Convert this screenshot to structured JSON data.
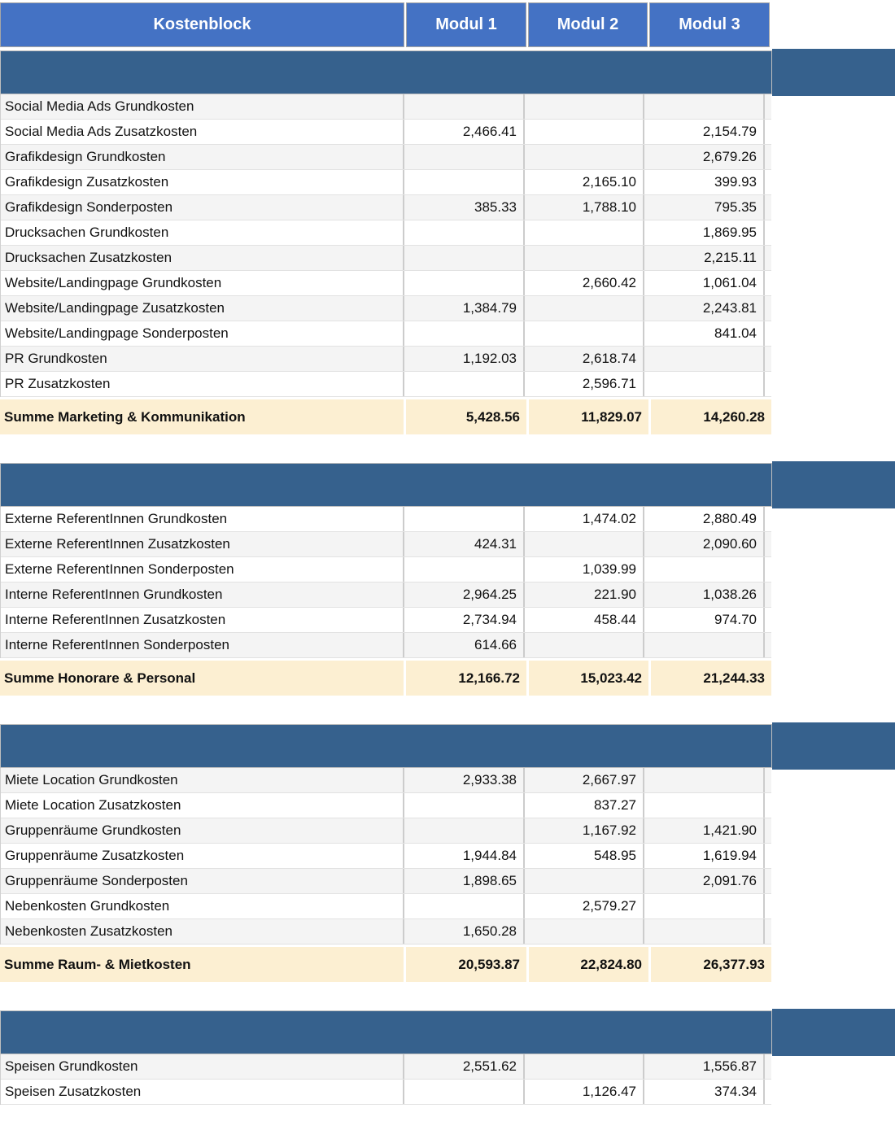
{
  "colors": {
    "header_bg": "#4472C4",
    "section_bar_bg": "#36618D",
    "summary_bg": "#FCEFD2",
    "band_bg": "#F4F4F4"
  },
  "header": {
    "columns": [
      "Kostenblock",
      "Modul 1",
      "Modul 2",
      "Modul 3"
    ]
  },
  "sections": [
    {
      "header_label": "",
      "first_row_shaded": true,
      "rows": [
        {
          "label": "Social Media Ads Grundkosten",
          "values": [
            "",
            "",
            ""
          ]
        },
        {
          "label": "Social Media Ads Zusatzkosten",
          "values": [
            "2,466.41",
            "",
            "2,154.79"
          ]
        },
        {
          "label": "Grafikdesign Grundkosten",
          "values": [
            "",
            "",
            "2,679.26"
          ]
        },
        {
          "label": "Grafikdesign Zusatzkosten",
          "values": [
            "",
            "2,165.10",
            "399.93"
          ]
        },
        {
          "label": "Grafikdesign Sonderposten",
          "values": [
            "385.33",
            "1,788.10",
            "795.35"
          ]
        },
        {
          "label": "Drucksachen Grundkosten",
          "values": [
            "",
            "",
            "1,869.95"
          ]
        },
        {
          "label": "Drucksachen Zusatzkosten",
          "values": [
            "",
            "",
            "2,215.11"
          ]
        },
        {
          "label": "Website/Landingpage Grundkosten",
          "values": [
            "",
            "2,660.42",
            "1,061.04"
          ]
        },
        {
          "label": "Website/Landingpage Zusatzkosten",
          "values": [
            "1,384.79",
            "",
            "2,243.81"
          ]
        },
        {
          "label": "Website/Landingpage Sonderposten",
          "values": [
            "",
            "",
            "841.04"
          ]
        },
        {
          "label": "PR Grundkosten",
          "values": [
            "1,192.03",
            "2,618.74",
            ""
          ]
        },
        {
          "label": "PR Zusatzkosten",
          "values": [
            "",
            "2,596.71",
            ""
          ]
        }
      ],
      "summary": {
        "label": "Summe Marketing & Kommunikation",
        "values": [
          "5,428.56",
          "11,829.07",
          "14,260.28"
        ]
      }
    },
    {
      "header_label": "",
      "first_row_shaded": false,
      "rows": [
        {
          "label": "Externe ReferentInnen Grundkosten",
          "values": [
            "",
            "1,474.02",
            "2,880.49"
          ]
        },
        {
          "label": "Externe ReferentInnen Zusatzkosten",
          "values": [
            "424.31",
            "",
            "2,090.60"
          ]
        },
        {
          "label": "Externe ReferentInnen Sonderposten",
          "values": [
            "",
            "1,039.99",
            ""
          ]
        },
        {
          "label": "Interne ReferentInnen Grundkosten",
          "values": [
            "2,964.25",
            "221.90",
            "1,038.26"
          ]
        },
        {
          "label": "Interne ReferentInnen Zusatzkosten",
          "values": [
            "2,734.94",
            "458.44",
            "974.70"
          ]
        },
        {
          "label": "Interne ReferentInnen Sonderposten",
          "values": [
            "614.66",
            "",
            ""
          ]
        }
      ],
      "summary": {
        "label": "Summe Honorare & Personal",
        "values": [
          "12,166.72",
          "15,023.42",
          "21,244.33"
        ]
      }
    },
    {
      "header_label": "",
      "first_row_shaded": true,
      "rows": [
        {
          "label": "Miete Location Grundkosten",
          "values": [
            "2,933.38",
            "2,667.97",
            ""
          ]
        },
        {
          "label": "Miete Location Zusatzkosten",
          "values": [
            "",
            "837.27",
            ""
          ]
        },
        {
          "label": "Gruppenräume Grundkosten",
          "values": [
            "",
            "1,167.92",
            "1,421.90"
          ]
        },
        {
          "label": "Gruppenräume Zusatzkosten",
          "values": [
            "1,944.84",
            "548.95",
            "1,619.94"
          ]
        },
        {
          "label": "Gruppenräume Sonderposten",
          "values": [
            "1,898.65",
            "",
            "2,091.76"
          ]
        },
        {
          "label": "Nebenkosten Grundkosten",
          "values": [
            "",
            "2,579.27",
            ""
          ]
        },
        {
          "label": "Nebenkosten Zusatzkosten",
          "values": [
            "1,650.28",
            "",
            ""
          ]
        }
      ],
      "summary": {
        "label": "Summe Raum- & Mietkosten",
        "values": [
          "20,593.87",
          "22,824.80",
          "26,377.93"
        ]
      }
    },
    {
      "header_label": "",
      "first_row_shaded": true,
      "rows": [
        {
          "label": "Speisen Grundkosten",
          "values": [
            "2,551.62",
            "",
            "1,556.87"
          ]
        },
        {
          "label": "Speisen Zusatzkosten",
          "values": [
            "",
            "1,126.47",
            "374.34"
          ]
        }
      ],
      "summary": null
    }
  ]
}
